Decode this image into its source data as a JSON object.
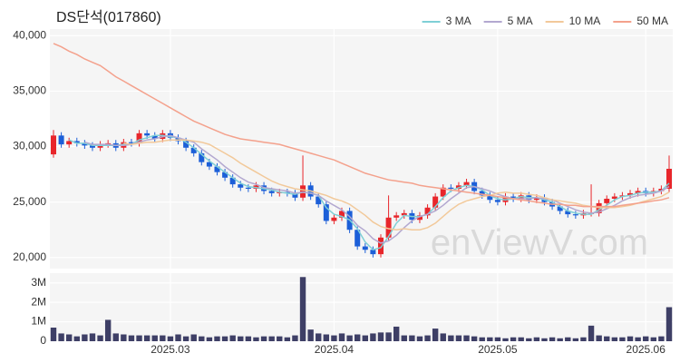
{
  "chart_data": [
    {
      "type": "candlestick",
      "title": "DS단석(017860)",
      "watermark": "enViewV.com",
      "up_color": "#e8262b",
      "down_color": "#1c5fd8",
      "grid": true,
      "legend": "upper right",
      "ylim": [
        19000,
        40600
      ],
      "yticks": [
        {
          "value": 20000,
          "label": "20,000"
        },
        {
          "value": 25000,
          "label": "25,000"
        },
        {
          "value": 30000,
          "label": "30,000"
        },
        {
          "value": 35000,
          "label": "35,000"
        },
        {
          "value": 40000,
          "label": "40,000"
        }
      ],
      "open": [
        29300,
        31000,
        30200,
        30500,
        30300,
        30100,
        29900,
        30200,
        30300,
        29900,
        30400,
        30300,
        31200,
        31000,
        30700,
        31200,
        30800,
        30500,
        29900,
        29400,
        28600,
        28200,
        27700,
        27200,
        26600,
        26300,
        26200,
        26500,
        26000,
        25800,
        25900,
        25800,
        25400,
        26500,
        25500,
        24800,
        23300,
        23600,
        24200,
        22500,
        21000,
        20700,
        20300,
        21800,
        23600,
        23800,
        24000,
        23400,
        23800,
        24500,
        25500,
        26300,
        26200,
        26500,
        26800,
        26000,
        25600,
        25200,
        25000,
        25500,
        25300,
        25600,
        25200,
        25400,
        25000,
        24600,
        24200,
        23900,
        23800,
        24000,
        24000,
        24900,
        25300,
        25500,
        25600,
        25800,
        26000,
        25800,
        26000,
        26200
      ],
      "high": [
        31500,
        31300,
        30800,
        30800,
        30600,
        30400,
        30500,
        30600,
        30600,
        30700,
        30700,
        31500,
        31500,
        31300,
        31500,
        31500,
        31100,
        30800,
        30200,
        29700,
        28900,
        28500,
        28000,
        27500,
        26900,
        26600,
        26800,
        26800,
        26300,
        26200,
        26200,
        26100,
        29200,
        26800,
        25800,
        25100,
        23900,
        24500,
        24500,
        22800,
        21300,
        21000,
        22100,
        25600,
        24100,
        24300,
        24300,
        24100,
        24800,
        25800,
        26600,
        26600,
        26800,
        27100,
        27100,
        26300,
        25900,
        25500,
        25800,
        25800,
        25900,
        25900,
        25700,
        25700,
        25300,
        24900,
        24500,
        24200,
        24300,
        26600,
        25200,
        25600,
        25800,
        25900,
        26100,
        26300,
        26300,
        26300,
        26500,
        29200
      ],
      "low": [
        29000,
        29900,
        29900,
        30000,
        29800,
        29600,
        29600,
        29900,
        29600,
        29600,
        30000,
        30000,
        30700,
        30400,
        30400,
        30500,
        30200,
        29600,
        29100,
        28300,
        27900,
        27400,
        26900,
        26300,
        26000,
        25900,
        25900,
        25700,
        25500,
        25500,
        25500,
        25100,
        25100,
        25200,
        24500,
        23000,
        23000,
        23300,
        22200,
        20700,
        20400,
        20000,
        20000,
        21500,
        23300,
        23500,
        23100,
        23100,
        23500,
        24200,
        25200,
        25900,
        25900,
        26200,
        25700,
        25300,
        24900,
        24700,
        24700,
        25000,
        25000,
        24900,
        24900,
        24700,
        24300,
        23900,
        23600,
        23500,
        23500,
        23700,
        23700,
        24600,
        25000,
        25200,
        25300,
        25500,
        25500,
        25500,
        25700,
        25900
      ],
      "close": [
        31000,
        30200,
        30500,
        30300,
        30100,
        29900,
        30200,
        30300,
        29900,
        30400,
        30300,
        31200,
        31000,
        30700,
        31200,
        30800,
        30500,
        29900,
        29400,
        28600,
        28200,
        27700,
        27200,
        26600,
        26300,
        26200,
        26500,
        26000,
        25800,
        25900,
        25800,
        25400,
        26500,
        25500,
        24800,
        23300,
        23600,
        24200,
        22500,
        21000,
        20700,
        20300,
        21800,
        23600,
        23800,
        24000,
        23400,
        23800,
        24500,
        25500,
        26300,
        26200,
        26500,
        26800,
        26000,
        25600,
        25200,
        25000,
        25500,
        25300,
        25600,
        25200,
        25400,
        25000,
        24600,
        24200,
        23900,
        23800,
        24000,
        24000,
        24900,
        25300,
        25500,
        25600,
        25800,
        26000,
        25800,
        26000,
        26200,
        28000
      ],
      "series": [
        {
          "name": "3 MA",
          "color": "#7fcfd6",
          "values": [
            null,
            null,
            30600,
            30300,
            30300,
            30100,
            30100,
            30100,
            30100,
            30200,
            30200,
            30600,
            30800,
            31000,
            31000,
            30900,
            30800,
            30400,
            29900,
            29300,
            28700,
            28200,
            27700,
            27200,
            26700,
            26400,
            26300,
            26200,
            26100,
            25900,
            25800,
            25700,
            25900,
            25800,
            25600,
            24500,
            23900,
            23700,
            23400,
            22600,
            21400,
            20700,
            20900,
            21900,
            23100,
            23800,
            23700,
            23700,
            23900,
            24600,
            25400,
            26000,
            26300,
            26500,
            26400,
            26100,
            25600,
            25300,
            25200,
            25300,
            25500,
            25400,
            25400,
            25200,
            25000,
            24600,
            24200,
            24000,
            23900,
            23900,
            24300,
            24700,
            25200,
            25500,
            25600,
            25800,
            25900,
            25900,
            26000,
            26700
          ]
        },
        {
          "name": "5 MA",
          "color": "#b3a8d0",
          "values": [
            null,
            null,
            null,
            null,
            30400,
            30200,
            30200,
            30200,
            30100,
            30100,
            30200,
            30400,
            30600,
            30700,
            30900,
            31000,
            30800,
            30600,
            30400,
            29800,
            29300,
            28800,
            28200,
            27700,
            27200,
            26800,
            26600,
            26300,
            26200,
            26100,
            26000,
            25800,
            25900,
            25800,
            25600,
            25100,
            24700,
            24300,
            23700,
            22900,
            22400,
            21700,
            21300,
            21500,
            22000,
            22700,
            23300,
            23700,
            23900,
            24200,
            24700,
            25300,
            25800,
            26300,
            26400,
            26200,
            26000,
            25700,
            25500,
            25300,
            25300,
            25300,
            25400,
            25300,
            25200,
            24900,
            24600,
            24300,
            24100,
            24000,
            24100,
            24400,
            24700,
            25100,
            25400,
            25600,
            25700,
            25800,
            26000,
            26400
          ]
        },
        {
          "name": "10 MA",
          "color": "#f2c99a",
          "values": [
            null,
            null,
            null,
            null,
            null,
            null,
            null,
            null,
            null,
            30300,
            30200,
            30300,
            30400,
            30400,
            30500,
            30600,
            30600,
            30600,
            30500,
            30400,
            30200,
            29800,
            29400,
            29000,
            28500,
            28100,
            27700,
            27300,
            26900,
            26600,
            26400,
            26200,
            26100,
            26000,
            25800,
            25600,
            25300,
            25100,
            24800,
            24300,
            23800,
            23200,
            22800,
            22600,
            22500,
            22600,
            22500,
            22500,
            22700,
            23100,
            23700,
            24300,
            24800,
            25100,
            25300,
            25500,
            25600,
            25800,
            25900,
            25800,
            25800,
            25700,
            25600,
            25400,
            25200,
            25100,
            25000,
            24900,
            24700,
            24600,
            24500,
            24500,
            24500,
            24600,
            24700,
            24900,
            25100,
            25300,
            25500,
            25900
          ]
        },
        {
          "name": "50 MA",
          "color": "#f4a18c",
          "values": [
            39300,
            39000,
            38600,
            38300,
            37900,
            37600,
            37300,
            36800,
            36300,
            35900,
            35500,
            35100,
            34700,
            34300,
            33900,
            33500,
            33100,
            32700,
            32300,
            32000,
            31700,
            31400,
            31100,
            30900,
            30700,
            30600,
            30500,
            30400,
            30300,
            30200,
            30000,
            29800,
            29600,
            29400,
            29200,
            29000,
            28800,
            28500,
            28200,
            27900,
            27600,
            27400,
            27200,
            27000,
            26900,
            26800,
            26700,
            26500,
            26400,
            26300,
            26200,
            26100,
            26000,
            25900,
            25800,
            25700,
            25600,
            25500,
            25400,
            25300,
            25200,
            25100,
            25000,
            24900,
            24800,
            24800,
            24700,
            24700,
            24600,
            24600,
            24600,
            24600,
            24600,
            24700,
            24800,
            24900,
            25000,
            25100,
            25200,
            25400
          ]
        }
      ]
    },
    {
      "type": "bar",
      "color": "#3e3f66",
      "grid": true,
      "categories": [
        null,
        null,
        null,
        null,
        null,
        null,
        null,
        null,
        null,
        null,
        null,
        null,
        null,
        null,
        null,
        "2025.03",
        null,
        null,
        null,
        null,
        null,
        null,
        null,
        null,
        null,
        null,
        null,
        null,
        null,
        null,
        null,
        null,
        null,
        null,
        null,
        null,
        "2025.04",
        null,
        null,
        null,
        null,
        null,
        null,
        null,
        null,
        null,
        null,
        null,
        null,
        null,
        null,
        null,
        null,
        null,
        null,
        null,
        null,
        "2025.05",
        null,
        null,
        null,
        null,
        null,
        null,
        null,
        null,
        null,
        null,
        null,
        null,
        null,
        null,
        null,
        null,
        null,
        null,
        "2025.06",
        null,
        null,
        null
      ],
      "values": [
        700000,
        400000,
        350000,
        250000,
        350000,
        400000,
        300000,
        1100000,
        400000,
        350000,
        300000,
        300000,
        300000,
        300000,
        300000,
        250000,
        350000,
        250000,
        350000,
        250000,
        200000,
        250000,
        250000,
        300000,
        250000,
        250000,
        200000,
        250000,
        250000,
        250000,
        200000,
        300000,
        3300000,
        600000,
        400000,
        350000,
        300000,
        400000,
        300000,
        350000,
        300000,
        400000,
        450000,
        450000,
        750000,
        300000,
        300000,
        250000,
        300000,
        650000,
        400000,
        300000,
        300000,
        300000,
        250000,
        200000,
        200000,
        200000,
        150000,
        200000,
        200000,
        150000,
        200000,
        150000,
        200000,
        150000,
        200000,
        150000,
        200000,
        800000,
        300000,
        250000,
        200000,
        200000,
        250000,
        200000,
        250000,
        200000,
        250000,
        1750000
      ],
      "ylim": [
        0,
        3500000
      ],
      "yticks": [
        0,
        {
          "value": 1000000,
          "label": "1M"
        },
        {
          "value": 2000000,
          "label": "2M"
        },
        {
          "value": 3000000,
          "label": "3M"
        }
      ]
    }
  ]
}
